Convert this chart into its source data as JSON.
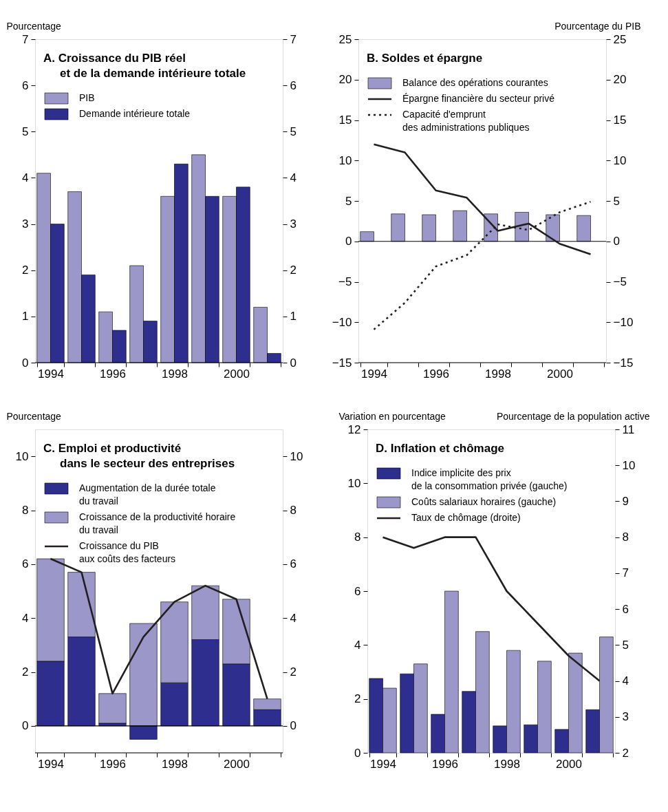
{
  "chart_data": [
    {
      "type": "bar",
      "title": "A. Croissance du PIB réel\net de la demande intérieure totale",
      "ylabel": "Pourcentage",
      "categories": [
        "1994",
        null,
        "1996",
        null,
        "1998",
        null,
        "2000",
        null
      ],
      "series": [
        {
          "name": "PIB",
          "color": "#9b98c9",
          "values": [
            4.1,
            3.7,
            1.1,
            2.1,
            3.6,
            4.5,
            3.6,
            1.2
          ]
        },
        {
          "name": "Demande intérieure totale",
          "color": "#2e2e8f",
          "values": [
            3.0,
            1.9,
            0.7,
            0.9,
            4.3,
            3.6,
            3.8,
            0.2
          ]
        }
      ],
      "ylim": [
        0,
        7
      ],
      "yticks": [
        0,
        1,
        2,
        3,
        4,
        5,
        6,
        7
      ],
      "y2lim": [
        0,
        7
      ],
      "y2ticks": [
        0,
        1,
        2,
        3,
        4,
        5,
        6,
        7
      ],
      "legend": "top left"
    },
    {
      "type": "bar",
      "title": "B. Soldes et épargne",
      "y2label": "Pourcentage du PIB",
      "categories": [
        "1994",
        null,
        "1996",
        null,
        "1998",
        null,
        "2000",
        null
      ],
      "series": [
        {
          "name": "Balance des opérations courantes",
          "color": "#9b98c9",
          "values": [
            1.2,
            3.4,
            3.3,
            3.8,
            3.4,
            3.6,
            3.3,
            3.2
          ]
        },
        {
          "name": "Épargne financière du secteur privé",
          "type": "line",
          "line_style": "solid",
          "color": "#231f20",
          "values": [
            12.0,
            11.0,
            6.3,
            5.4,
            1.3,
            2.2,
            -0.3,
            -1.6
          ]
        },
        {
          "name": "Capacité d'emprunt\ndes administrations publiques",
          "type": "line",
          "line_style": "dotted",
          "color": "#231f20",
          "values": [
            -10.9,
            -7.6,
            -3.1,
            -1.7,
            2.1,
            1.4,
            3.6,
            4.9
          ]
        }
      ],
      "ylim": [
        -15,
        25
      ],
      "yticks": [
        -15,
        -10,
        -5,
        0,
        5,
        10,
        15,
        20,
        25
      ],
      "y2lim": [
        -15,
        25
      ],
      "y2ticks": [
        -15,
        -10,
        -5,
        0,
        5,
        10,
        15,
        20,
        25
      ],
      "legend": "top left"
    },
    {
      "type": "bar",
      "title": "C. Emploi et productivité\ndans le secteur des entreprises",
      "ylabel": "Pourcentage",
      "categories": [
        "1994",
        null,
        "1996",
        null,
        "1998",
        null,
        "2000",
        null
      ],
      "stacked": true,
      "series": [
        {
          "name": "Augmentation de la durée totale\ndu travail",
          "color": "#2e2e8f",
          "values": [
            2.4,
            3.3,
            0.1,
            -0.5,
            1.6,
            3.2,
            2.3,
            0.6
          ]
        },
        {
          "name": "Croissance de la productivité horaire\ndu travail",
          "color": "#9b98c9",
          "values": [
            3.8,
            2.4,
            1.1,
            3.8,
            3.0,
            2.0,
            2.4,
            0.4
          ]
        },
        {
          "name": "Croissance du PIB\naux coûts des facteurs",
          "type": "line",
          "line_style": "solid",
          "color": "#231f20",
          "values": [
            6.2,
            5.7,
            1.2,
            3.3,
            4.6,
            5.2,
            4.7,
            1.0
          ]
        }
      ],
      "ylim": [
        -1,
        11
      ],
      "yticks": [
        0,
        2,
        4,
        6,
        8,
        10
      ],
      "y2lim": [
        -1,
        11
      ],
      "y2ticks": [
        0,
        2,
        4,
        6,
        8,
        10
      ],
      "legend": "top left"
    },
    {
      "type": "bar",
      "title": "D. Inflation et chômage",
      "ylabel": "Variation en pourcentage",
      "y2label": "Pourcentage de la population active",
      "categories": [
        "1994",
        null,
        "1996",
        null,
        "1998",
        null,
        "2000",
        null
      ],
      "series": [
        {
          "name": "Indice implicite des prix\nde la consommation privée (gauche)",
          "color": "#2e2e8f",
          "values": [
            2.76,
            2.93,
            1.43,
            2.28,
            1.0,
            1.04,
            0.87,
            1.6
          ]
        },
        {
          "name": "Coûts salariaux horaires (gauche)",
          "color": "#9b98c9",
          "values": [
            2.4,
            3.3,
            6.0,
            4.5,
            3.8,
            3.4,
            3.7,
            4.3
          ]
        },
        {
          "name": "Taux de chômage (droite)",
          "type": "line",
          "axis": "y2",
          "line_style": "solid",
          "color": "#231f20",
          "values": [
            8.0,
            7.7,
            8.0,
            8.0,
            6.5,
            5.6,
            4.7,
            4.0
          ]
        }
      ],
      "ylim": [
        0,
        12
      ],
      "yticks": [
        0,
        2,
        4,
        6,
        8,
        10,
        12
      ],
      "y2lim": [
        2,
        11
      ],
      "y2ticks": [
        2,
        3,
        4,
        5,
        6,
        7,
        8,
        9,
        10,
        11
      ],
      "legend": "top left"
    }
  ]
}
